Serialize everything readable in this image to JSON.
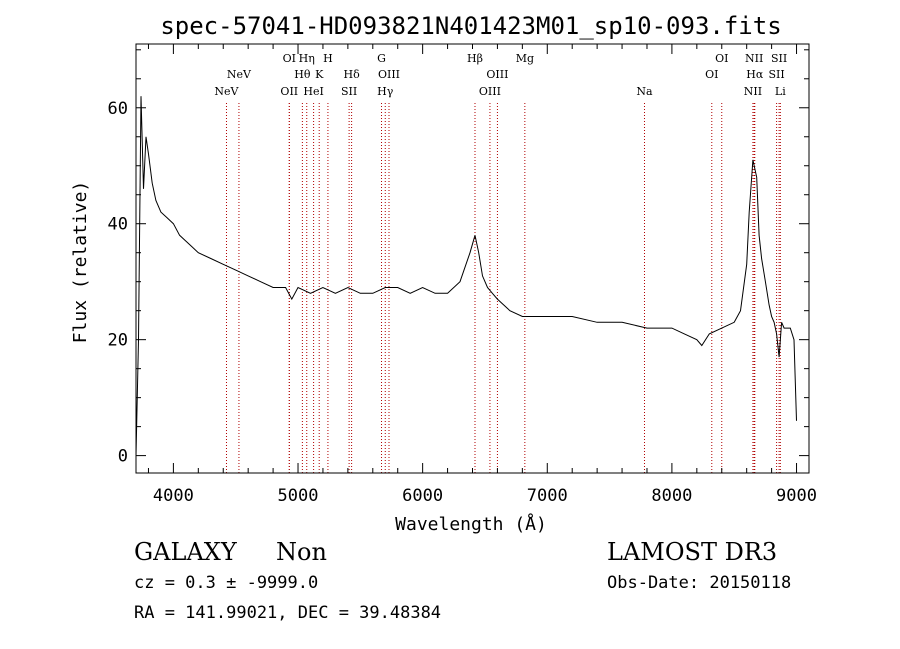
{
  "chart_data": {
    "type": "line",
    "title": "spec-57041-HD093821N401423M01_sp10-093.fits",
    "xlabel": "Wavelength (Å)",
    "ylabel": "Flux (relative)",
    "xlim": [
      3700,
      9100
    ],
    "ylim": [
      -3,
      71
    ],
    "x_ticks": [
      4000,
      5000,
      6000,
      7000,
      8000,
      9000
    ],
    "y_ticks": [
      0,
      20,
      40,
      60
    ],
    "grid": false,
    "series": [
      {
        "name": "spectrum",
        "x": [
          3700,
          3720,
          3740,
          3760,
          3780,
          3800,
          3830,
          3860,
          3900,
          3950,
          4000,
          4050,
          4100,
          4150,
          4200,
          4300,
          4400,
          4500,
          4600,
          4700,
          4800,
          4900,
          4950,
          5000,
          5100,
          5200,
          5300,
          5400,
          5500,
          5600,
          5700,
          5800,
          5900,
          6000,
          6100,
          6200,
          6300,
          6380,
          6420,
          6450,
          6480,
          6520,
          6560,
          6600,
          6700,
          6800,
          6900,
          7000,
          7200,
          7400,
          7600,
          7800,
          8000,
          8100,
          8200,
          8240,
          8300,
          8400,
          8500,
          8550,
          8600,
          8620,
          8650,
          8680,
          8700,
          8720,
          8750,
          8780,
          8800,
          8820,
          8840,
          8860,
          8880,
          8900,
          8950,
          8980,
          9000
        ],
        "y": [
          0,
          20,
          62,
          46,
          55,
          52,
          47,
          44,
          42,
          41,
          40,
          38,
          37,
          36,
          35,
          34,
          33,
          32,
          31,
          30,
          29,
          29,
          27,
          29,
          28,
          29,
          28,
          29,
          28,
          28,
          29,
          29,
          28,
          29,
          28,
          28,
          30,
          35,
          38,
          35,
          31,
          29,
          28,
          27,
          25,
          24,
          24,
          24,
          24,
          23,
          23,
          22,
          22,
          21,
          20,
          19,
          21,
          22,
          23,
          25,
          33,
          42,
          51,
          48,
          38,
          34,
          30,
          26,
          24,
          23,
          21,
          17,
          23,
          22,
          22,
          20,
          6
        ]
      }
    ],
    "lines": [
      {
        "label": "NeV",
        "x": 4426,
        "row": 3
      },
      {
        "label": "NeV",
        "x": 4526,
        "row": 2
      },
      {
        "label": "OII",
        "x": 4930,
        "row": 3
      },
      {
        "label": "OI",
        "x": 4930,
        "row": 1
      },
      {
        "label": "Hθ",
        "x": 5035,
        "row": 2
      },
      {
        "label": "Hη",
        "x": 5070,
        "row": 1
      },
      {
        "label": "HeI",
        "x": 5125,
        "row": 3
      },
      {
        "label": "K",
        "x": 5170,
        "row": 2
      },
      {
        "label": "H",
        "x": 5240,
        "row": 1
      },
      {
        "label": "SII",
        "x": 5410,
        "row": 3
      },
      {
        "label": "Hδ",
        "x": 5430,
        "row": 2
      },
      {
        "label": "G",
        "x": 5670,
        "row": 1
      },
      {
        "label": "Hγ",
        "x": 5700,
        "row": 3
      },
      {
        "label": "OIII",
        "x": 5730,
        "row": 2
      },
      {
        "label": "Hβ",
        "x": 6420,
        "row": 1
      },
      {
        "label": "OIII",
        "x": 6540,
        "row": 3
      },
      {
        "label": "OIII",
        "x": 6600,
        "row": 2
      },
      {
        "label": "Mg",
        "x": 6820,
        "row": 1
      },
      {
        "label": "Na",
        "x": 7780,
        "row": 3
      },
      {
        "label": "OI",
        "x": 8320,
        "row": 2
      },
      {
        "label": "OI",
        "x": 8400,
        "row": 1
      },
      {
        "label": "NII",
        "x": 8650,
        "row": 3
      },
      {
        "label": "NII",
        "x": 8660,
        "row": 1
      },
      {
        "label": "Hα",
        "x": 8665,
        "row": 2
      },
      {
        "label": "SII",
        "x": 8840,
        "row": 2
      },
      {
        "label": "SII",
        "x": 8860,
        "row": 1
      },
      {
        "label": "Li",
        "x": 8870,
        "row": 3
      }
    ]
  },
  "footer": {
    "object_class": "GALAXY",
    "subclass": "Non",
    "survey": "LAMOST DR3",
    "cz": "cz = 0.3 ± -9999.0",
    "obs_date": "Obs-Date: 20150118",
    "coords": "RA = 141.99021, DEC =  39.48384"
  },
  "colors": {
    "spectrum": "#000000",
    "line_marker": "#b00000",
    "background": "#ffffff"
  }
}
